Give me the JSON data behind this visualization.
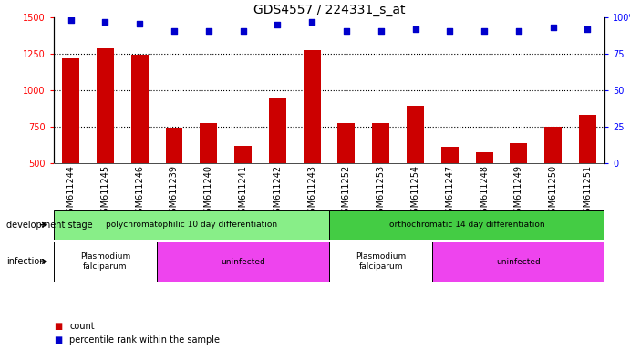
{
  "title": "GDS4557 / 224331_s_at",
  "samples": [
    "GSM611244",
    "GSM611245",
    "GSM611246",
    "GSM611239",
    "GSM611240",
    "GSM611241",
    "GSM611242",
    "GSM611243",
    "GSM611252",
    "GSM611253",
    "GSM611254",
    "GSM611247",
    "GSM611248",
    "GSM611249",
    "GSM611250",
    "GSM611251"
  ],
  "counts": [
    1220,
    1290,
    1245,
    740,
    775,
    615,
    950,
    1275,
    775,
    775,
    895,
    610,
    570,
    635,
    750,
    830
  ],
  "percentile_ranks": [
    98,
    97,
    96,
    91,
    91,
    91,
    95,
    97,
    91,
    91,
    92,
    91,
    91,
    91,
    93,
    92
  ],
  "ylim_left": [
    500,
    1500
  ],
  "ylim_right": [
    0,
    100
  ],
  "bar_color": "#cc0000",
  "dot_color": "#0000cc",
  "bar_width": 0.5,
  "background_color": "#ffffff",
  "plot_bg_color": "#ffffff",
  "xticklabel_bg": "#d8d8d8",
  "dev_stage_groups": [
    {
      "label": "polychromatophilic 10 day differentiation",
      "start": 0,
      "end": 7,
      "color": "#88ee88"
    },
    {
      "label": "orthochromatic 14 day differentiation",
      "start": 8,
      "end": 15,
      "color": "#44cc44"
    }
  ],
  "infection_groups": [
    {
      "label": "Plasmodium\nfalciparum",
      "start": 0,
      "end": 2,
      "color": "#ffffff"
    },
    {
      "label": "uninfected",
      "start": 3,
      "end": 7,
      "color": "#ee44ee"
    },
    {
      "label": "Plasmodium\nfalciparum",
      "start": 8,
      "end": 10,
      "color": "#ffffff"
    },
    {
      "label": "uninfected",
      "start": 11,
      "end": 15,
      "color": "#ee44ee"
    }
  ],
  "left_yticks": [
    500,
    750,
    1000,
    1250,
    1500
  ],
  "right_yticks": [
    0,
    25,
    50,
    75,
    100
  ],
  "title_fontsize": 10,
  "tick_fontsize": 7,
  "annotation_fontsize": 7,
  "label_fontsize": 7
}
